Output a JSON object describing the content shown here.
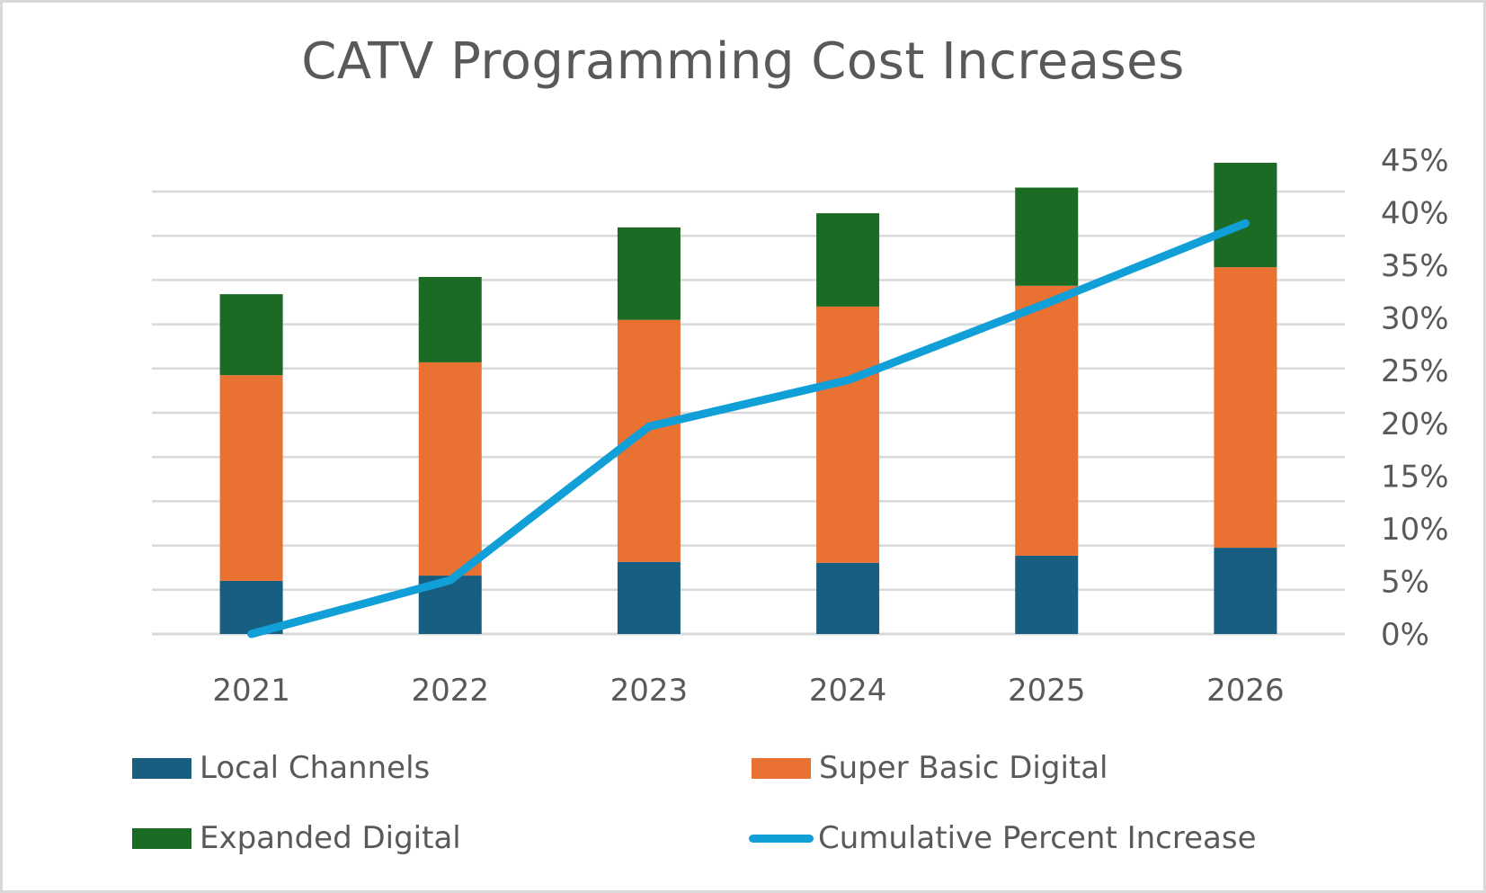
{
  "chart_data": {
    "type": "bar",
    "subtype": "stacked-bar-with-line-secondary-axis",
    "title": "CATV Programming Cost Increases",
    "xlabel": "",
    "ylabel": "",
    "categories": [
      "2021",
      "2022",
      "2023",
      "2024",
      "2025",
      "2026"
    ],
    "primary_axis": {
      "labels_visible": false,
      "ylim": [
        0,
        10
      ],
      "gridlines": 10,
      "note": "values in primary-axis gridline units (axis labels hidden)"
    },
    "secondary_axis": {
      "ylim": [
        0,
        45
      ],
      "tick_step": 5,
      "tick_labels": [
        "0%",
        "5%",
        "10%",
        "15%",
        "20%",
        "25%",
        "30%",
        "35%",
        "40%",
        "45%"
      ]
    },
    "grid": true,
    "legend_position": "bottom",
    "series": [
      {
        "name": "Local Channels",
        "type": "bar",
        "axis": "primary",
        "color": "#175e81",
        "values": [
          1.2,
          1.32,
          1.63,
          1.61,
          1.77,
          1.95
        ]
      },
      {
        "name": "Super Basic Digital",
        "type": "bar",
        "axis": "primary",
        "color": "#e97132",
        "values": [
          4.65,
          4.82,
          5.47,
          5.79,
          6.1,
          6.34
        ]
      },
      {
        "name": "Expanded Digital",
        "type": "bar",
        "axis": "primary",
        "color": "#1b6b25",
        "values": [
          1.83,
          1.93,
          2.09,
          2.11,
          2.22,
          2.36
        ]
      },
      {
        "name": "Cumulative Percent Increase",
        "type": "line",
        "axis": "secondary",
        "color": "#109fd6",
        "values": [
          0,
          5.1,
          19.7,
          24.1,
          31.4,
          39.0
        ]
      }
    ]
  },
  "legend": {
    "items": [
      {
        "label": "Local Channels",
        "kind": "box",
        "color": "#175e81"
      },
      {
        "label": "Super Basic Digital",
        "kind": "box",
        "color": "#e97132"
      },
      {
        "label": "Expanded Digital",
        "kind": "box",
        "color": "#1b6b25"
      },
      {
        "label": "Cumulative Percent Increase",
        "kind": "line",
        "color": "#109fd6"
      }
    ]
  }
}
